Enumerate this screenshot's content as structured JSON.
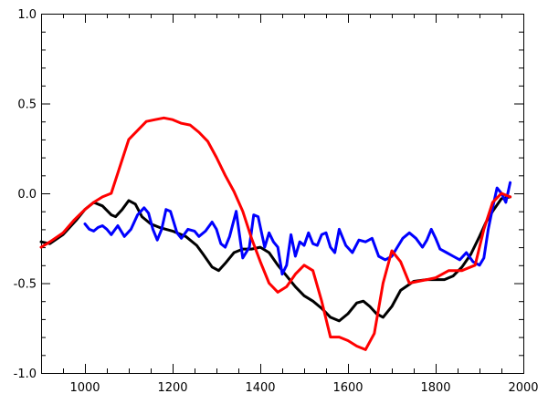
{
  "chart_data": {
    "type": "line",
    "title": "",
    "xlabel": "",
    "ylabel": "",
    "xlim": [
      900,
      2000
    ],
    "ylim": [
      -1.0,
      1.0
    ],
    "grid": false,
    "x_ticks": [
      1000,
      1200,
      1400,
      1600,
      1800,
      2000
    ],
    "x_tick_labels": [
      "1000",
      "1200",
      "1400",
      "1600",
      "1800",
      "2000"
    ],
    "y_ticks": [
      -1.0,
      -0.5,
      0.0,
      0.5,
      1.0
    ],
    "y_tick_labels": [
      "-1.0",
      "-0.5",
      "0.0",
      "0.5",
      "1.0"
    ],
    "series": [
      {
        "color": "#000000",
        "x": [
          900,
          920,
          950,
          980,
          1000,
          1020,
          1040,
          1060,
          1070,
          1085,
          1100,
          1115,
          1130,
          1150,
          1170,
          1200,
          1230,
          1255,
          1270,
          1290,
          1305,
          1320,
          1340,
          1360,
          1380,
          1400,
          1420,
          1440,
          1460,
          1480,
          1500,
          1520,
          1540,
          1560,
          1580,
          1600,
          1620,
          1635,
          1650,
          1665,
          1680,
          1700,
          1720,
          1750,
          1780,
          1800,
          1820,
          1840,
          1860,
          1880,
          1900,
          1915,
          1930,
          1950,
          1970
        ],
        "y": [
          -0.27,
          -0.28,
          -0.23,
          -0.15,
          -0.09,
          -0.05,
          -0.07,
          -0.12,
          -0.13,
          -0.09,
          -0.04,
          -0.06,
          -0.13,
          -0.17,
          -0.19,
          -0.21,
          -0.24,
          -0.29,
          -0.34,
          -0.41,
          -0.43,
          -0.39,
          -0.33,
          -0.31,
          -0.31,
          -0.3,
          -0.33,
          -0.4,
          -0.46,
          -0.52,
          -0.57,
          -0.6,
          -0.64,
          -0.69,
          -0.71,
          -0.67,
          -0.61,
          -0.6,
          -0.63,
          -0.67,
          -0.69,
          -0.63,
          -0.54,
          -0.49,
          -0.48,
          -0.48,
          -0.48,
          -0.46,
          -0.41,
          -0.34,
          -0.24,
          -0.16,
          -0.1,
          -0.03,
          -0.02
        ]
      },
      {
        "color": "#0000ff",
        "x": [
          1000,
          1010,
          1020,
          1030,
          1040,
          1050,
          1060,
          1075,
          1090,
          1105,
          1120,
          1135,
          1145,
          1155,
          1165,
          1175,
          1185,
          1195,
          1210,
          1220,
          1235,
          1250,
          1260,
          1275,
          1290,
          1300,
          1310,
          1320,
          1330,
          1345,
          1360,
          1375,
          1385,
          1395,
          1410,
          1420,
          1430,
          1440,
          1450,
          1460,
          1470,
          1480,
          1490,
          1500,
          1510,
          1520,
          1530,
          1540,
          1550,
          1560,
          1570,
          1580,
          1595,
          1610,
          1625,
          1640,
          1655,
          1670,
          1685,
          1700,
          1715,
          1725,
          1740,
          1755,
          1770,
          1780,
          1790,
          1800,
          1810,
          1825,
          1840,
          1855,
          1870,
          1885,
          1900,
          1910,
          1920,
          1930,
          1940,
          1950,
          1960,
          1970
        ],
        "y": [
          -0.17,
          -0.2,
          -0.21,
          -0.19,
          -0.18,
          -0.2,
          -0.23,
          -0.18,
          -0.24,
          -0.2,
          -0.12,
          -0.08,
          -0.11,
          -0.2,
          -0.26,
          -0.2,
          -0.09,
          -0.1,
          -0.22,
          -0.25,
          -0.2,
          -0.21,
          -0.24,
          -0.21,
          -0.16,
          -0.2,
          -0.28,
          -0.3,
          -0.24,
          -0.1,
          -0.36,
          -0.3,
          -0.12,
          -0.13,
          -0.3,
          -0.22,
          -0.27,
          -0.3,
          -0.45,
          -0.4,
          -0.23,
          -0.35,
          -0.27,
          -0.29,
          -0.22,
          -0.28,
          -0.29,
          -0.23,
          -0.22,
          -0.3,
          -0.33,
          -0.2,
          -0.29,
          -0.33,
          -0.26,
          -0.27,
          -0.25,
          -0.35,
          -0.37,
          -0.35,
          -0.29,
          -0.25,
          -0.22,
          -0.25,
          -0.3,
          -0.26,
          -0.2,
          -0.25,
          -0.31,
          -0.33,
          -0.35,
          -0.37,
          -0.33,
          -0.38,
          -0.4,
          -0.36,
          -0.2,
          -0.08,
          0.03,
          0.0,
          -0.05,
          0.06
        ]
      },
      {
        "color": "#ff0000",
        "x": [
          900,
          920,
          950,
          975,
          1000,
          1020,
          1040,
          1060,
          1080,
          1100,
          1120,
          1140,
          1160,
          1180,
          1200,
          1220,
          1240,
          1260,
          1280,
          1300,
          1320,
          1340,
          1360,
          1380,
          1400,
          1420,
          1440,
          1460,
          1480,
          1500,
          1520,
          1540,
          1560,
          1580,
          1600,
          1620,
          1640,
          1660,
          1680,
          1700,
          1720,
          1740,
          1760,
          1780,
          1800,
          1830,
          1860,
          1890,
          1910,
          1930,
          1950,
          1970
        ],
        "y": [
          -0.3,
          -0.27,
          -0.22,
          -0.15,
          -0.09,
          -0.05,
          -0.02,
          0.0,
          0.15,
          0.3,
          0.35,
          0.4,
          0.41,
          0.42,
          0.41,
          0.39,
          0.38,
          0.34,
          0.29,
          0.2,
          0.1,
          0.01,
          -0.1,
          -0.25,
          -0.38,
          -0.5,
          -0.55,
          -0.52,
          -0.45,
          -0.4,
          -0.43,
          -0.6,
          -0.8,
          -0.8,
          -0.82,
          -0.85,
          -0.87,
          -0.78,
          -0.5,
          -0.32,
          -0.38,
          -0.5,
          -0.49,
          -0.48,
          -0.47,
          -0.43,
          -0.43,
          -0.4,
          -0.2,
          -0.05,
          0.0,
          -0.02
        ]
      }
    ]
  }
}
